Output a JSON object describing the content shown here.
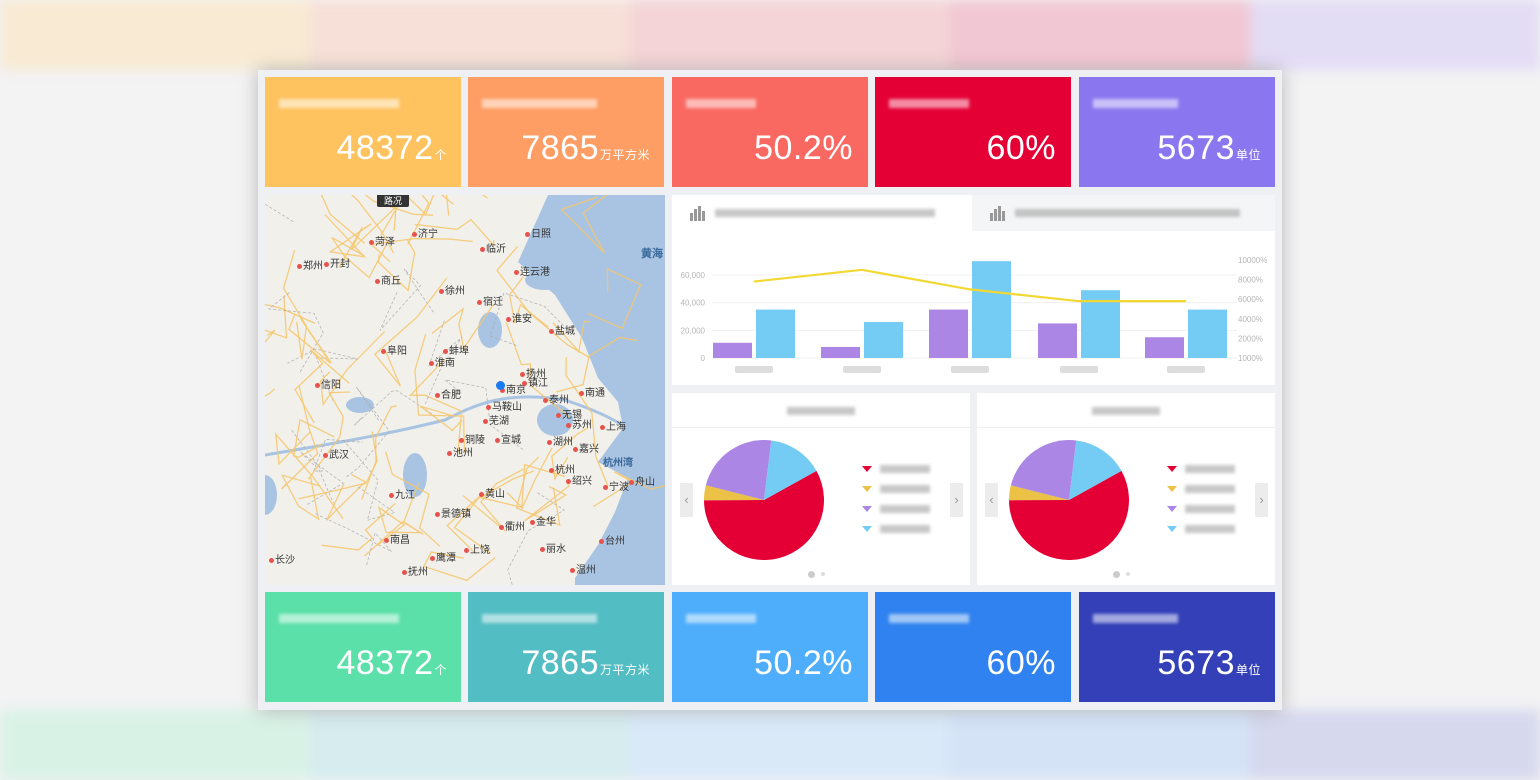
{
  "kpi_top": [
    {
      "value": "48372",
      "unit": "个",
      "color": "#fec35f"
    },
    {
      "value": "7865",
      "unit": "万平方米",
      "color": "#fe9e64"
    },
    {
      "value": "50.2%",
      "unit": "",
      "color": "#f96961"
    },
    {
      "value": "60%",
      "unit": "",
      "color": "#e40035"
    },
    {
      "value": "5673",
      "unit": "单位",
      "color": "#8a77ef"
    }
  ],
  "kpi_bottom": [
    {
      "value": "48372",
      "unit": "个",
      "color": "#5be0a9"
    },
    {
      "value": "7865",
      "unit": "万平方米",
      "color": "#52bdc3"
    },
    {
      "value": "50.2%",
      "unit": "",
      "color": "#4eaefc"
    },
    {
      "value": "60%",
      "unit": "",
      "color": "#2f82ef"
    },
    {
      "value": "5673",
      "unit": "单位",
      "color": "#3340b7"
    }
  ],
  "map": {
    "traffic_button": "路况",
    "sea_labels": [
      "黄海",
      "杭州湾"
    ],
    "cities": [
      "郑州",
      "开封",
      "商丘",
      "济宁",
      "菏泽",
      "日照",
      "临沂",
      "连云港",
      "徐州",
      "宿迁",
      "淮安",
      "盐城",
      "阜阳",
      "蚌埠",
      "淮南",
      "信阳",
      "合肥",
      "南京",
      "扬州",
      "镇江",
      "南通",
      "泰州",
      "马鞍山",
      "芜湖",
      "无锡",
      "苏州",
      "上海",
      "铜陵",
      "宣城",
      "湖州",
      "嘉兴",
      "武汉",
      "池州",
      "杭州",
      "绍兴",
      "宁波",
      "舟山",
      "九江",
      "黄山",
      "南昌",
      "金华",
      "衢州",
      "长沙",
      "丽水",
      "台州",
      "温州",
      "景德镇",
      "上饶",
      "鹰潭",
      "抚州"
    ],
    "marker_color": "#1a7cf0"
  },
  "chart_data": {
    "type": "bar",
    "categories": [
      "",
      "",
      "",
      "",
      ""
    ],
    "series": [
      {
        "type": "bar",
        "color": "#ac86e4",
        "values": [
          11000,
          8000,
          35000,
          25000,
          15000
        ]
      },
      {
        "type": "bar",
        "color": "#74cbf4",
        "values": [
          35000,
          26000,
          70000,
          49000,
          35000
        ]
      },
      {
        "type": "line",
        "axis": "right",
        "color": "#f2d832",
        "values": [
          7800,
          9000,
          7000,
          5800,
          5800
        ]
      }
    ],
    "y_left": {
      "ticks": [
        "0",
        "20,000",
        "40,000",
        "60,000"
      ],
      "tick_values": [
        0,
        20000,
        40000,
        60000
      ]
    },
    "y_right": {
      "ticks": [
        "1000%",
        "2000%",
        "4000%",
        "6000%",
        "8000%",
        "10000%"
      ],
      "tick_values": [
        1000,
        2000,
        4000,
        6000,
        8000,
        10000
      ]
    },
    "grid": true
  },
  "pies": [
    {
      "slices": [
        {
          "value": 58,
          "color": "#e40035"
        },
        {
          "value": 4,
          "color": "#ebc146"
        },
        {
          "value": 23,
          "color": "#ac86e4"
        },
        {
          "value": 15,
          "color": "#74cbf4"
        }
      ]
    },
    {
      "slices": [
        {
          "value": 58,
          "color": "#e40035"
        },
        {
          "value": 4,
          "color": "#ebc146"
        },
        {
          "value": 23,
          "color": "#ac86e4"
        },
        {
          "value": 15,
          "color": "#74cbf4"
        }
      ]
    }
  ],
  "nav": {
    "prev": "‹",
    "next": "›"
  }
}
